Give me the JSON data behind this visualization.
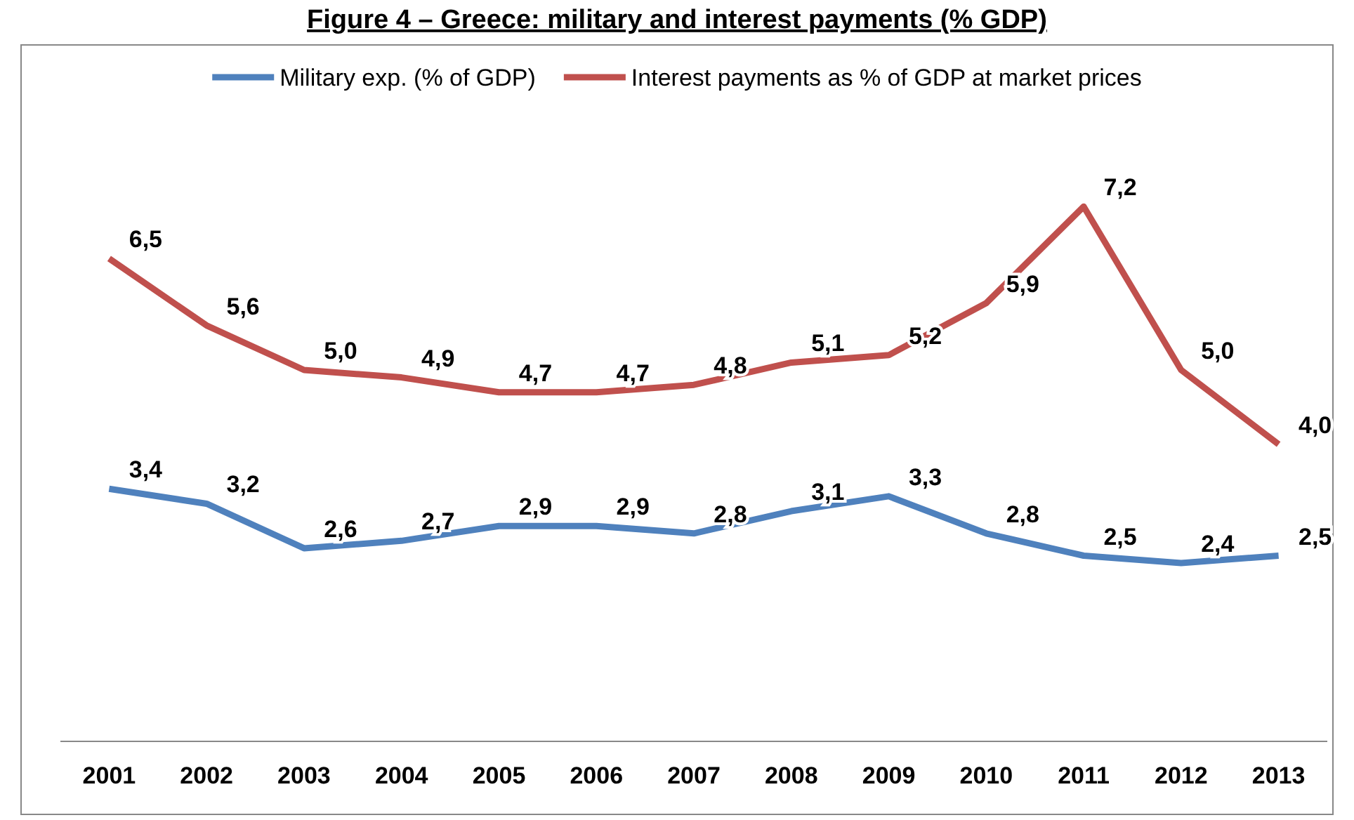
{
  "chart_data": {
    "type": "line",
    "title": "Figure 4 – Greece: military and interest payments (% GDP)",
    "categories": [
      "2001",
      "2002",
      "2003",
      "2004",
      "2005",
      "2006",
      "2007",
      "2008",
      "2009",
      "2010",
      "2011",
      "2012",
      "2013"
    ],
    "series": [
      {
        "name": "Military exp. (% of GDP)",
        "color": "#4f81bd",
        "values": [
          3.4,
          3.2,
          2.6,
          2.7,
          2.9,
          2.9,
          2.8,
          3.1,
          3.3,
          2.8,
          2.5,
          2.4,
          2.5
        ],
        "value_labels": [
          "3,4",
          "3,2",
          "2,6",
          "2,7",
          "2,9",
          "2,9",
          "2,8",
          "3,1",
          "3,3",
          "2,8",
          "2,5",
          "2,4",
          "2,5"
        ]
      },
      {
        "name": "Interest payments as % of GDP at market prices",
        "color": "#c0504d",
        "values": [
          6.5,
          5.6,
          5.0,
          4.9,
          4.7,
          4.7,
          4.8,
          5.1,
          5.2,
          5.9,
          7.2,
          5.0,
          4.0
        ],
        "value_labels": [
          "6,5",
          "5,6",
          "5,0",
          "4,9",
          "4,7",
          "4,7",
          "4,8",
          "5,1",
          "5,2",
          "5,9",
          "7,2",
          "5,0",
          "4,0"
        ]
      }
    ],
    "tick_labels": "x",
    "legend": "top",
    "marker": "none",
    "line_style": "solid"
  }
}
